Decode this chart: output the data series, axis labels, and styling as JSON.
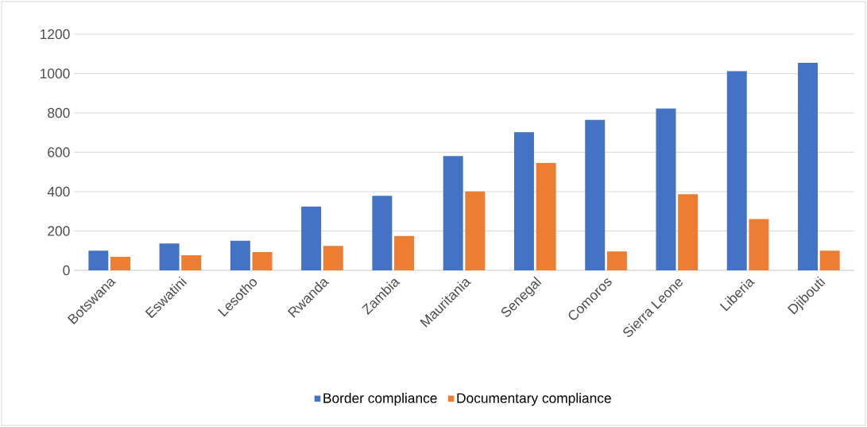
{
  "chart_data": {
    "type": "bar",
    "categories": [
      "Botswana",
      "Eswatini",
      "Lesotho",
      "Rwanda",
      "Zambia",
      "Mauritania",
      "Senegal",
      "Comoros",
      "Sierra Leone",
      "Liberia",
      "Djibouti"
    ],
    "series": [
      {
        "name": "Border compliance",
        "color": "#4472c4",
        "values": [
          100,
          136,
          151,
          324,
          379,
          581,
          702,
          765,
          822,
          1012,
          1055
        ]
      },
      {
        "name": "Documentary compliance",
        "color": "#ed7d31",
        "values": [
          69,
          77,
          93,
          124,
          175,
          401,
          546,
          96,
          387,
          261,
          100
        ]
      }
    ],
    "ylim": [
      0,
      1200
    ],
    "yticks": [
      0,
      200,
      400,
      600,
      800,
      1000,
      1200
    ],
    "grid": "y",
    "legend": "bottom"
  }
}
